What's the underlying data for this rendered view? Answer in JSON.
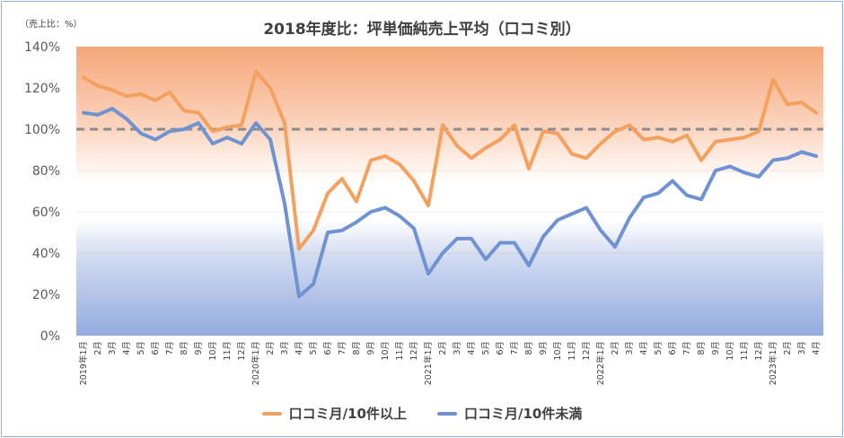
{
  "chart_data": {
    "type": "line",
    "title": "2018年度比：坪単価純売上平均（口コミ別）",
    "unit_label": "（売上比：%）",
    "ylim": [
      0,
      140
    ],
    "yticks": [
      0,
      20,
      40,
      60,
      80,
      100,
      120,
      140
    ],
    "ytick_labels": [
      "0%",
      "20%",
      "40%",
      "60%",
      "80%",
      "100%",
      "120%",
      "140%"
    ],
    "reference_line": 100,
    "legend_position": "bottom",
    "categories": [
      "2019年1月",
      "2月",
      "3月",
      "4月",
      "5月",
      "6月",
      "7月",
      "8月",
      "9月",
      "10月",
      "11月",
      "12月",
      "2020年1月",
      "2月",
      "3月",
      "4月",
      "5月",
      "6月",
      "7月",
      "8月",
      "9月",
      "10月",
      "11月",
      "12月",
      "2021年1月",
      "2月",
      "3月",
      "4月",
      "5月",
      "6月",
      "7月",
      "8月",
      "9月",
      "10月",
      "11月",
      "12月",
      "2022年1月",
      "2月",
      "3月",
      "4月",
      "5月",
      "6月",
      "7月",
      "8月",
      "9月",
      "10月",
      "11月",
      "12月",
      "2023年1月",
      "2月",
      "3月",
      "4月"
    ],
    "series": [
      {
        "name": "口コミ月/10件以上",
        "color": "#f4a160",
        "values": [
          125,
          121,
          119,
          116,
          117,
          114,
          118,
          109,
          108,
          99,
          101,
          102,
          128,
          120,
          103,
          42,
          51,
          69,
          76,
          65,
          85,
          87,
          83,
          75,
          63,
          102,
          92,
          86,
          91,
          95,
          102,
          81,
          99,
          98,
          88,
          86,
          93,
          99,
          102,
          95,
          96,
          94,
          97,
          85,
          94,
          95,
          96,
          99,
          124,
          112,
          113,
          108
        ]
      },
      {
        "name": "口コミ月/10件未満",
        "color": "#6f93d2",
        "values": [
          108,
          107,
          110,
          105,
          98,
          95,
          99,
          100,
          103,
          93,
          96,
          93,
          103,
          95,
          64,
          19,
          25,
          50,
          51,
          55,
          60,
          62,
          58,
          52,
          30,
          40,
          47,
          47,
          37,
          45,
          45,
          34,
          48,
          56,
          59,
          62,
          51,
          43,
          57,
          67,
          69,
          75,
          68,
          66,
          80,
          82,
          79,
          77,
          85,
          86,
          89,
          87
        ]
      }
    ]
  },
  "legend": [
    {
      "label": "口コミ月/10件以上",
      "color": "#f4a160"
    },
    {
      "label": "口コミ月/10件未満",
      "color": "#6f93d2"
    }
  ]
}
